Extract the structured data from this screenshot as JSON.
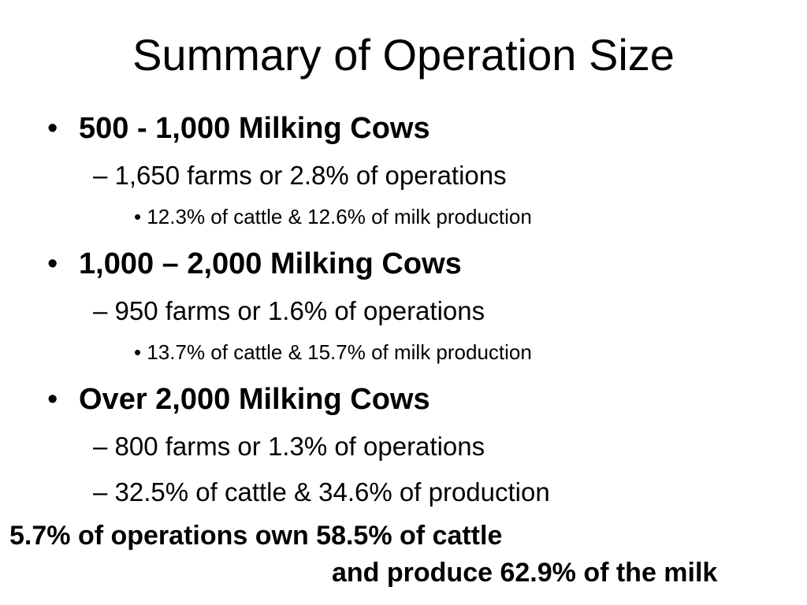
{
  "slide": {
    "title": "Summary of Operation Size",
    "groups": [
      {
        "heading_bullet": "•",
        "heading": "500 - 1,000 Milking Cows",
        "sub": [
          {
            "prefix": "–",
            "text": "1,650 farms or 2.8% of operations"
          }
        ],
        "subsub": [
          {
            "prefix": "•",
            "text": "12.3% of cattle & 12.6% of milk production"
          }
        ]
      },
      {
        "heading_bullet": "•",
        "heading": "1,000 – 2,000 Milking Cows",
        "sub": [
          {
            "prefix": "–",
            "text": "950 farms or 1.6% of operations"
          }
        ],
        "subsub": [
          {
            "prefix": "•",
            "text": "13.7% of cattle & 15.7% of milk production"
          }
        ]
      },
      {
        "heading_bullet": "•",
        "heading": "Over 2,000 Milking Cows",
        "sub": [
          {
            "prefix": "–",
            "text": "800 farms or 1.3% of operations"
          },
          {
            "prefix": "–",
            "text": "32.5% of cattle & 34.6% of production"
          }
        ]
      }
    ],
    "summary_line1": "5.7% of operations own 58.5% of cattle",
    "summary_line2": "and produce 62.9% of the milk"
  }
}
